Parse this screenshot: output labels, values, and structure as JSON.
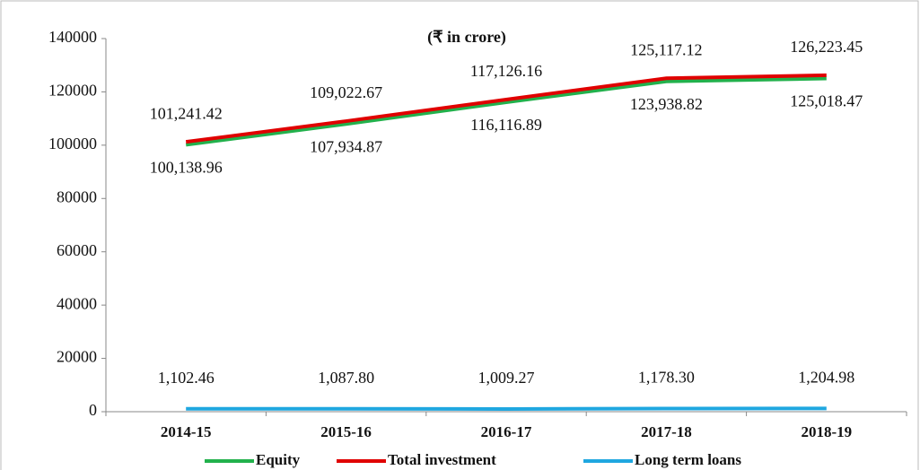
{
  "chart_data": {
    "type": "line",
    "title": "(₹ in crore)",
    "categories": [
      "2014-15",
      "2015-16",
      "2016-17",
      "2017-18",
      "2018-19"
    ],
    "ylim": [
      0,
      140000
    ],
    "yticks": [
      0,
      20000,
      40000,
      60000,
      80000,
      100000,
      120000,
      140000
    ],
    "series": [
      {
        "name": "Equity",
        "color": "#22b14c",
        "values": [
          100138.96,
          107934.87,
          116116.89,
          123938.82,
          125018.47
        ],
        "value_labels": [
          "100,138.96",
          "107,934.87",
          "116,116.89",
          "123,938.82",
          "125,018.47"
        ]
      },
      {
        "name": "Total investment",
        "color": "#e00000",
        "values": [
          101241.42,
          109022.67,
          117126.16,
          125117.12,
          126223.45
        ],
        "value_labels": [
          "101,241.42",
          "109,022.67",
          "117,126.16",
          "125,117.12",
          "126,223.45"
        ]
      },
      {
        "name": "Long term loans",
        "color": "#1fa7e0",
        "values": [
          1102.46,
          1087.8,
          1009.27,
          1178.3,
          1204.98
        ],
        "value_labels": [
          "1,102.46",
          "1,087.80",
          "1,009.27",
          "1,178.30",
          "1,204.98"
        ]
      }
    ]
  }
}
